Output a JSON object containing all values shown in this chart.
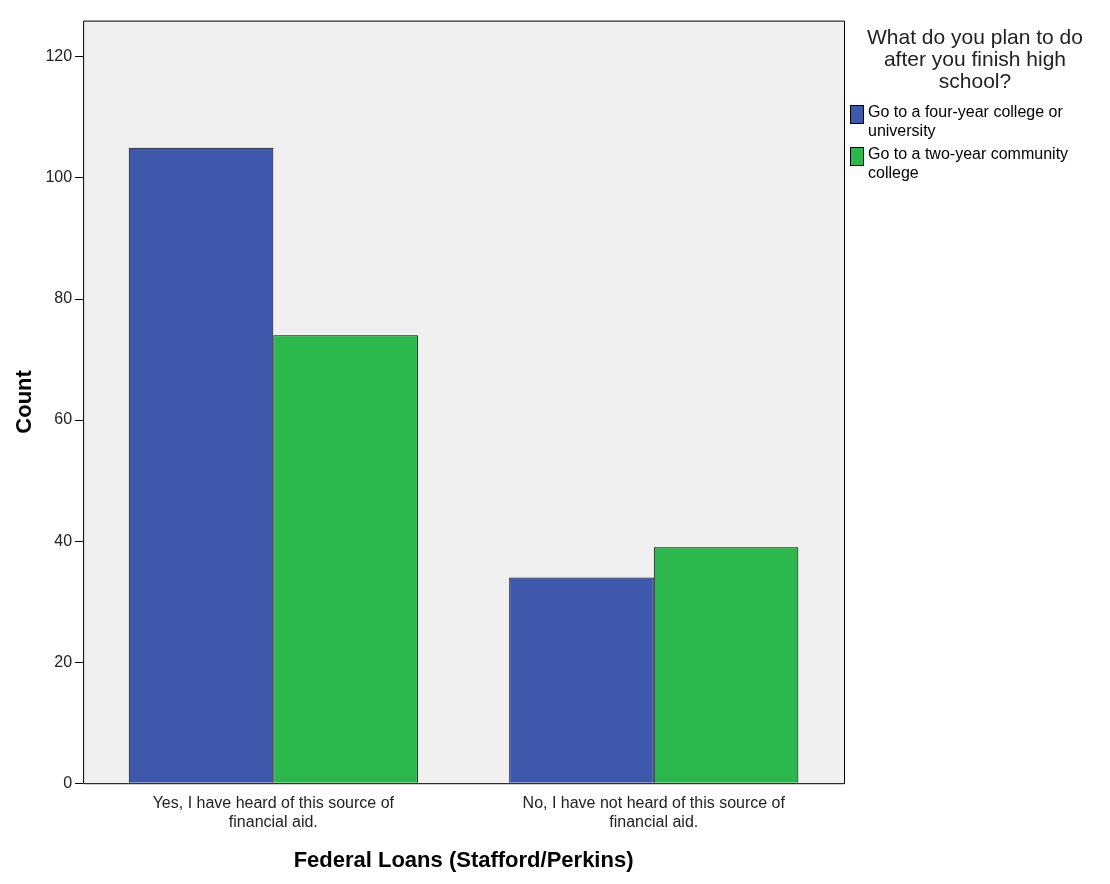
{
  "chart_data": {
    "type": "bar",
    "xlabel": "Federal Loans (Stafford/Perkins)",
    "ylabel": "Count",
    "legend_title": "What do you plan to do after you finish high school?",
    "categories": [
      "Yes, I have heard of this source of financial aid.",
      "No, I have not heard of this source of financial aid."
    ],
    "series": [
      {
        "name": "Go to a four-year college or university",
        "color": "#3e58ac",
        "values": [
          105,
          34
        ]
      },
      {
        "name": "Go to a two-year community college",
        "color": "#2db84d",
        "values": [
          74,
          39
        ]
      }
    ],
    "ylim": [
      0,
      126
    ],
    "yticks": [
      0,
      20,
      40,
      60,
      80,
      100,
      120
    ],
    "grid": false,
    "legend": "right"
  }
}
